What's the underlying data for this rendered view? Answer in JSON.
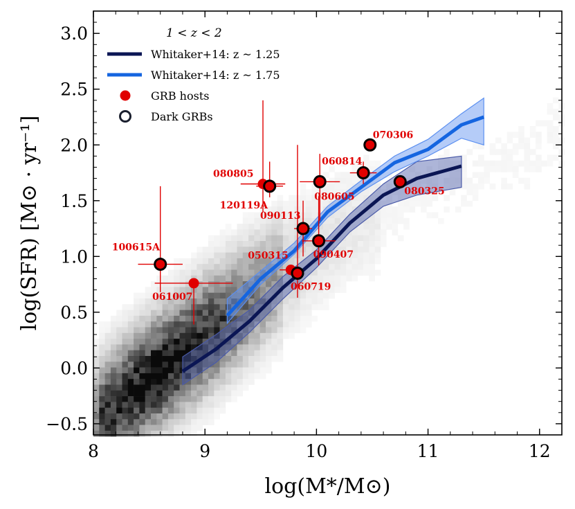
{
  "chart_data": {
    "type": "scatter",
    "xlabel": "log(M*/M⊙)",
    "ylabel": "log(SFR) [M⊙ · yr⁻¹]",
    "xlim": [
      8,
      12.2
    ],
    "ylim": [
      -0.6,
      3.2
    ],
    "x_ticks": [
      "8",
      "9",
      "10",
      "11",
      "12"
    ],
    "y_ticks": [
      "−0.5",
      "0.0",
      "0.5",
      "1.0",
      "1.5",
      "2.0",
      "2.5",
      "3.0"
    ],
    "x_tick_values": [
      8,
      9,
      10,
      11,
      12
    ],
    "y_tick_values": [
      -0.5,
      0,
      0.5,
      1.0,
      1.5,
      2.0,
      2.5,
      3.0
    ],
    "legend": {
      "title": "1 < z < 2",
      "placement": "top-left",
      "entries": [
        {
          "label": "Whitaker+14: z ~ 1.25",
          "kind": "line",
          "color": "#0b1654"
        },
        {
          "label": "Whitaker+14: z ~ 1.75",
          "kind": "line",
          "color": "#1565e0"
        },
        {
          "label": "GRB hosts",
          "kind": "marker-filled",
          "color": "#e00000"
        },
        {
          "label": "Dark GRBs",
          "kind": "marker-open",
          "color": "#1a1f2e"
        }
      ]
    },
    "series": [
      {
        "name": "Whitaker+14: z ~ 1.25",
        "color": "#0b1654",
        "band_color": "#4a5aa8",
        "x": [
          8.8,
          9.1,
          9.4,
          9.7,
          10.0,
          10.3,
          10.6,
          10.9,
          11.3
        ],
        "y": [
          -0.03,
          0.17,
          0.42,
          0.72,
          0.98,
          1.3,
          1.55,
          1.7,
          1.81
        ],
        "y_low": [
          -0.15,
          0.05,
          0.32,
          0.62,
          0.9,
          1.22,
          1.45,
          1.55,
          1.62
        ],
        "y_high": [
          0.1,
          0.3,
          0.52,
          0.82,
          1.06,
          1.38,
          1.65,
          1.85,
          1.9
        ]
      },
      {
        "name": "Whitaker+14: z ~ 1.75",
        "color": "#1565e0",
        "band_color": "#5b8ff0",
        "x": [
          9.2,
          9.5,
          9.8,
          10.1,
          10.4,
          10.7,
          11.0,
          11.3,
          11.5
        ],
        "y": [
          0.47,
          0.8,
          1.05,
          1.4,
          1.62,
          1.84,
          1.96,
          2.18,
          2.25
        ],
        "y_low": [
          0.4,
          0.75,
          1.02,
          1.35,
          1.58,
          1.76,
          1.9,
          2.06,
          2.0
        ],
        "y_high": [
          0.62,
          0.87,
          1.12,
          1.45,
          1.68,
          1.9,
          2.05,
          2.28,
          2.42
        ]
      }
    ],
    "points": [
      {
        "name": "100615A",
        "x": 8.6,
        "y": 0.93,
        "xerr": 0.2,
        "yerr_low": 0.25,
        "yerr_high": 0.7,
        "dark": true
      },
      {
        "name": "061007",
        "x": 8.9,
        "y": 0.76,
        "xerr": [
          0.35,
          0.35
        ],
        "yerr_low": 0.37,
        "yerr_high": 0.0,
        "dark": false
      },
      {
        "name": "080805",
        "x": 9.52,
        "y": 1.65,
        "xerr": 0.2,
        "yerr_low": 0.25,
        "yerr_high": 0.75,
        "dark": false
      },
      {
        "name": "120119A",
        "x": 9.58,
        "y": 1.63,
        "xerr": 0.12,
        "yerr_low": 0.1,
        "yerr_high": 0.22,
        "dark": true
      },
      {
        "name": "090113",
        "x": 9.88,
        "y": 1.25,
        "xerr": 0.08,
        "yerr_low": 0.25,
        "yerr_high": 0.25,
        "dark": true
      },
      {
        "name": "050315",
        "x": 9.77,
        "y": 0.88,
        "xerr": 0.1,
        "yerr_low": 0.05,
        "yerr_high": 0.0,
        "dark": false
      },
      {
        "name": "060719",
        "x": 9.83,
        "y": 0.85,
        "xerr": 0.05,
        "yerr_low": 0.22,
        "yerr_high": 1.15,
        "dark": true
      },
      {
        "name": "080605",
        "x": 10.03,
        "y": 1.67,
        "xerr": 0.18,
        "yerr_low": 0.35,
        "yerr_high": 0.25,
        "dark": true
      },
      {
        "name": "090407",
        "x": 10.02,
        "y": 1.14,
        "xerr": 0.15,
        "yerr_low": 0.22,
        "yerr_high": 0.4,
        "dark": true
      },
      {
        "name": "060814",
        "x": 10.42,
        "y": 1.75,
        "xerr": 0.12,
        "yerr_low": 0.1,
        "yerr_high": 0.1,
        "dark": true
      },
      {
        "name": "070306",
        "x": 10.48,
        "y": 2.0,
        "xerr": 0.0,
        "yerr_low": 0.0,
        "yerr_high": 0.0,
        "dark": true
      },
      {
        "name": "080325",
        "x": 10.75,
        "y": 1.67,
        "xerr": 0.0,
        "yerr_low": 0.0,
        "yerr_high": 0.0,
        "dark": true
      }
    ],
    "background": "grey 2D histogram of field galaxies",
    "grid": false
  }
}
